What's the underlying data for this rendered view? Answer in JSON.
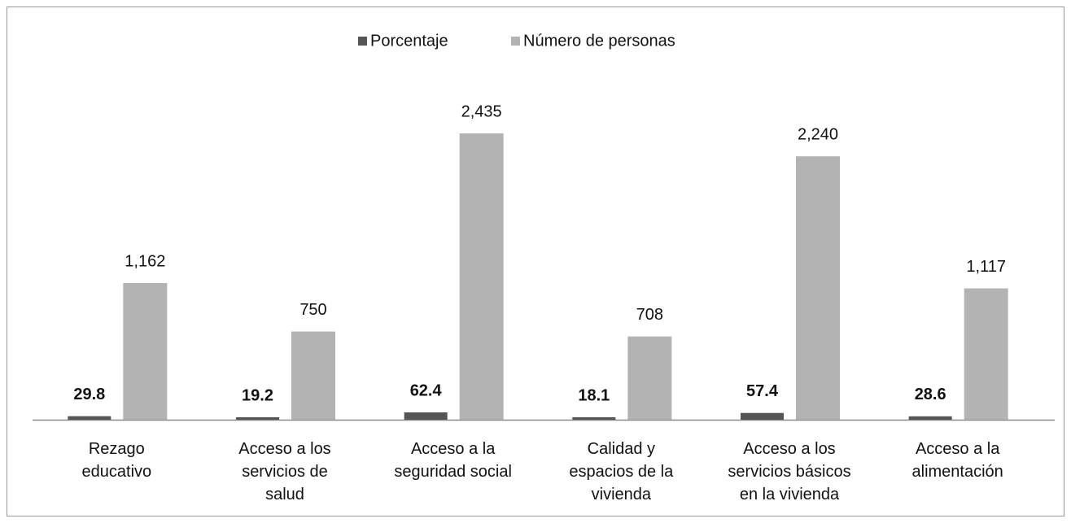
{
  "chart_data": {
    "type": "bar",
    "categories": [
      "Rezago\neducativo",
      "Acceso a los\nservicios de\nsalud",
      "Acceso a la\nseguridad social",
      "Calidad y\nespacios de la\nvivienda",
      "Acceso a los\nservicios básicos\nen la vivienda",
      "Acceso a la\nalimentación"
    ],
    "series": [
      {
        "name": "Porcentaje",
        "color": "#555555",
        "values": [
          29.8,
          19.2,
          62.4,
          18.1,
          57.4,
          28.6
        ]
      },
      {
        "name": "Número de personas",
        "color": "#b3b3b3",
        "values": [
          1162,
          750,
          2435,
          708,
          2240,
          1117
        ],
        "value_labels": [
          "1,162",
          "750",
          "2,435",
          "708",
          "2,240",
          "1,117"
        ]
      }
    ],
    "legend": "top"
  }
}
